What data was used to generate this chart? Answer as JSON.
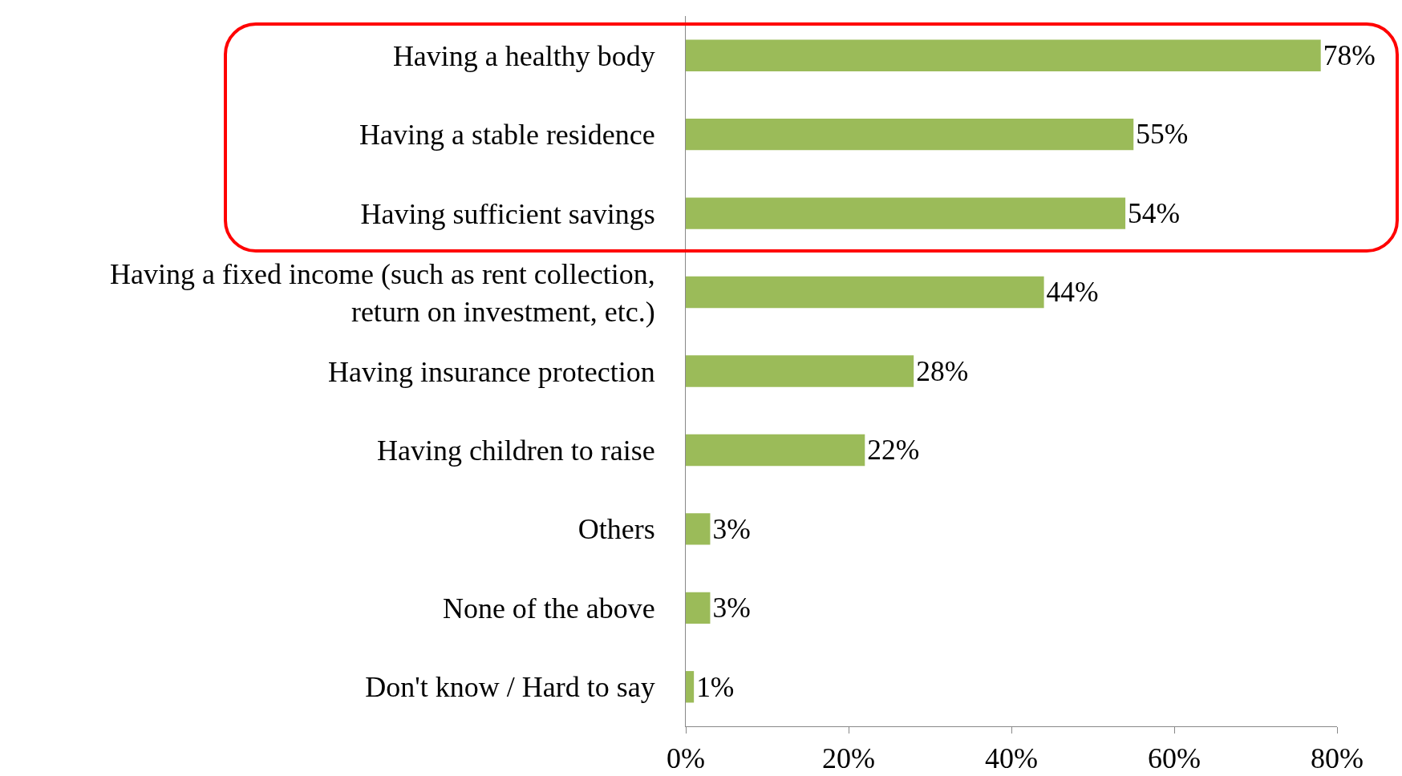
{
  "chart_data": {
    "type": "bar",
    "orientation": "horizontal",
    "categories": [
      "Having a healthy body",
      "Having a stable residence",
      "Having sufficient savings",
      "Having a fixed income (such as rent collection, return on investment, etc.)",
      "Having insurance protection",
      "Having children to raise",
      "Others",
      "None of the above",
      "Don't know / Hard to say"
    ],
    "values": [
      78,
      55,
      54,
      44,
      28,
      22,
      3,
      3,
      1
    ],
    "value_labels": [
      "78%",
      "55%",
      "54%",
      "44%",
      "28%",
      "22%",
      "3%",
      "3%",
      "1%"
    ],
    "color": "#9bbb59",
    "xlim": [
      0,
      80
    ],
    "xticks": [
      {
        "value": 0,
        "label": "0%"
      },
      {
        "value": 20,
        "label": "20%"
      },
      {
        "value": 40,
        "label": "40%"
      },
      {
        "value": 60,
        "label": "60%"
      },
      {
        "value": 80,
        "label": "80%"
      }
    ],
    "grid": false,
    "legend": false
  }
}
